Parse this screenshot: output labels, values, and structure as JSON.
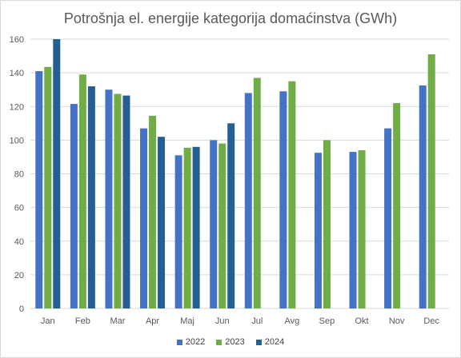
{
  "chart_data": {
    "type": "bar",
    "title": "Potrošnja el. energije kategorija domaćinstva (GWh)",
    "xlabel": "",
    "ylabel": "",
    "categories": [
      "Jan",
      "Feb",
      "Mar",
      "Apr",
      "Maj",
      "Jun",
      "Jul",
      "Avg",
      "Sep",
      "Okt",
      "Nov",
      "Dec"
    ],
    "ylim": [
      0,
      160
    ],
    "yticks": [
      "0",
      "20",
      "40",
      "60",
      "80",
      "100",
      "120",
      "140",
      "160"
    ],
    "grid": true,
    "legend_position": "bottom",
    "series": [
      {
        "name": "2022",
        "color": "#4472C4",
        "values": [
          141,
          121.5,
          130,
          107,
          91,
          100,
          128,
          129,
          92.5,
          93,
          107,
          132.5
        ]
      },
      {
        "name": "2023",
        "color": "#70AD47",
        "values": [
          143.5,
          139,
          127.5,
          114.5,
          95.5,
          98,
          137,
          135,
          100,
          94,
          122,
          151
        ]
      },
      {
        "name": "2024",
        "color": "#255E91",
        "values": [
          160,
          132,
          126.5,
          102,
          96,
          110,
          null,
          null,
          null,
          null,
          null,
          null
        ]
      }
    ]
  }
}
